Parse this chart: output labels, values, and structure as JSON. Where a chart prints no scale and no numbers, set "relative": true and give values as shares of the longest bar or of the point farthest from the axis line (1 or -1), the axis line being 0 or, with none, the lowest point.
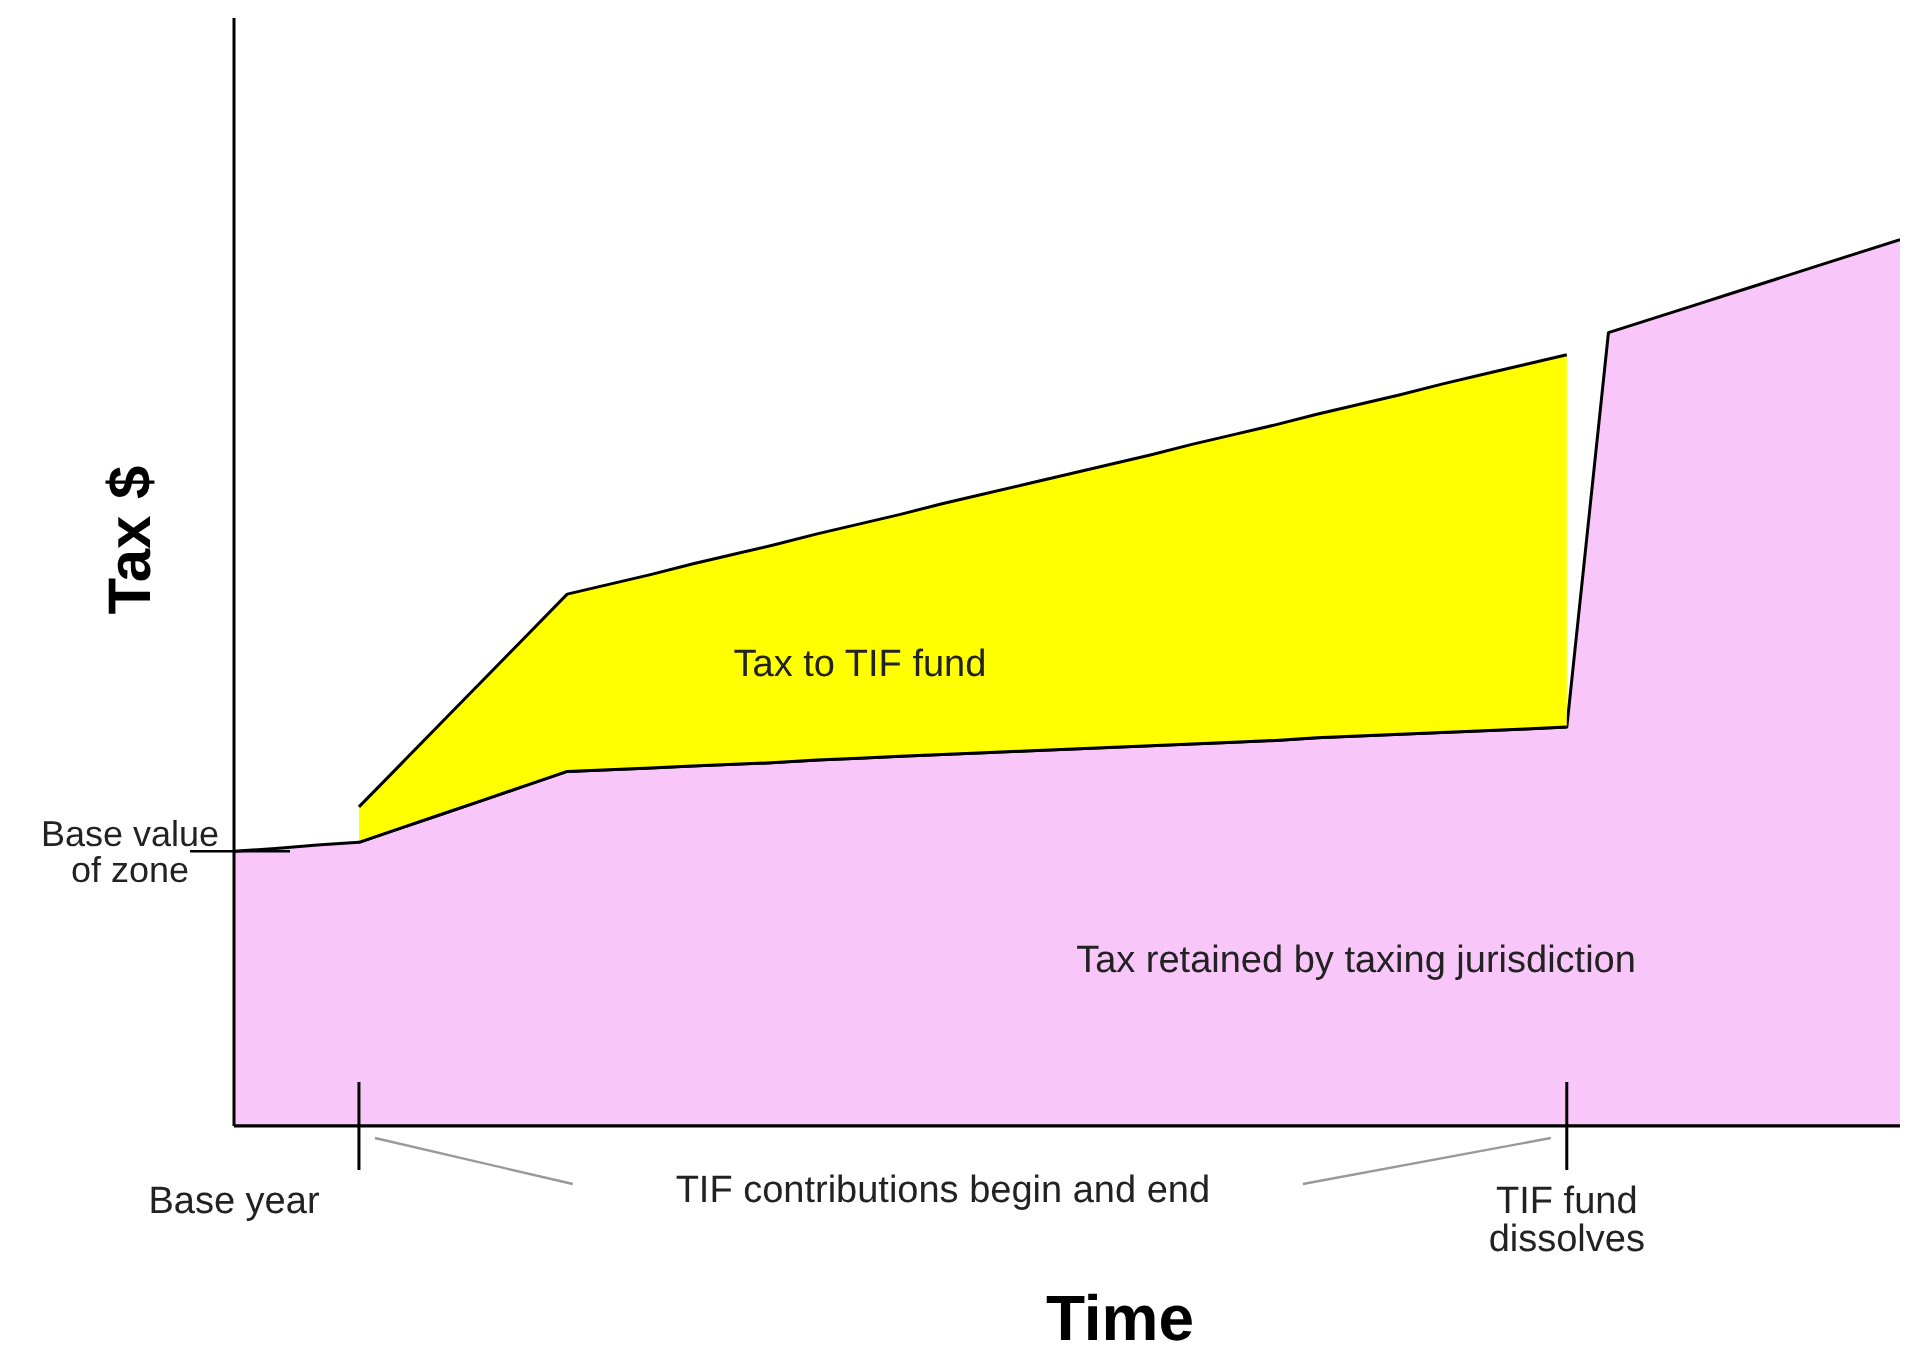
{
  "chart_data": {
    "type": "area",
    "relative": true,
    "stacked": true,
    "xlabel": "Time",
    "ylabel": "Tax $",
    "categories": [
      "Base year",
      null,
      null,
      null,
      null,
      null,
      null,
      null,
      null,
      null,
      null,
      null,
      null,
      null,
      null,
      null,
      null,
      null,
      null,
      null,
      null,
      null,
      null,
      null,
      null,
      null,
      null,
      null,
      null,
      null,
      null,
      null,
      "TIF fund dissolves",
      null,
      null,
      null,
      null,
      null,
      null,
      null,
      null
    ],
    "series": [
      {
        "color": "#f9c6f9",
        "values": [
          0.31,
          0.313,
          0.317,
          0.32,
          0.336,
          0.352,
          0.368,
          0.384,
          0.4,
          0.402,
          0.404,
          0.406,
          0.408,
          0.41,
          0.413,
          0.415,
          0.417,
          0.419,
          0.421,
          0.423,
          0.425,
          0.427,
          0.429,
          0.431,
          0.433,
          0.435,
          0.438,
          0.44,
          0.442,
          0.444,
          0.446,
          0.448,
          0.45,
          0.895,
          0.91,
          0.925,
          0.94,
          0.955,
          0.97,
          0.985,
          1.0
        ]
      },
      {
        "color": "#ffff00",
        "values": [
          null,
          null,
          null,
          0.04,
          0.072,
          0.104,
          0.136,
          0.168,
          0.2,
          0.209,
          0.218,
          0.228,
          0.237,
          0.246,
          0.255,
          0.264,
          0.273,
          0.283,
          0.292,
          0.301,
          0.31,
          0.319,
          0.328,
          0.338,
          0.347,
          0.356,
          0.365,
          0.374,
          0.383,
          0.393,
          0.402,
          0.411,
          0.42,
          null,
          null,
          null,
          null,
          null,
          null,
          null,
          null
        ]
      }
    ],
    "annotations": [
      {
        "text": "Base value of zone",
        "x": "Base year",
        "y": 0.31
      },
      "Tax to TIF fund",
      "Tax retained by taxing jurisdiction",
      "TIF contributions begin and end"
    ]
  }
}
